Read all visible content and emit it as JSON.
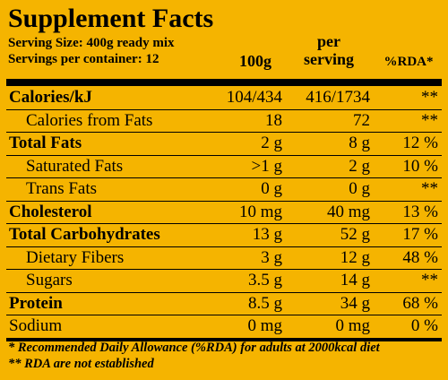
{
  "title": "Supplement Facts",
  "serving_size": "Serving Size: 400g ready mix",
  "servings_per_container": "Servings per container: 12",
  "columns": {
    "per100": "100g",
    "per_serving": "per\nserving",
    "per_serving_line1": "per",
    "per_serving_line2": "serving",
    "rda": "%RDA*"
  },
  "rows": [
    {
      "label": "Calories/kJ",
      "per100": "104/434",
      "per_serving": "416/1734",
      "rda": "**",
      "bold": true
    },
    {
      "label": "Calories from Fats",
      "per100": "18",
      "per_serving": "72",
      "rda": "**",
      "bold": false
    },
    {
      "label": "Total Fats",
      "per100": "2 g",
      "per_serving": "8 g",
      "rda": "12 %",
      "bold": true
    },
    {
      "label": "Saturated Fats",
      "per100": ">1 g",
      "per_serving": "2 g",
      "rda": "10 %",
      "bold": false
    },
    {
      "label": "Trans Fats",
      "per100": "0 g",
      "per_serving": "0 g",
      "rda": "**",
      "bold": false
    },
    {
      "label": "Cholesterol",
      "per100": "10 mg",
      "per_serving": "40 mg",
      "rda": "13 %",
      "bold": true
    },
    {
      "label": "Total Carbohydrates",
      "per100": "13 g",
      "per_serving": "52 g",
      "rda": "17 %",
      "bold": true
    },
    {
      "label": "Dietary Fibers",
      "per100": "3 g",
      "per_serving": "12 g",
      "rda": "48 %",
      "bold": false
    },
    {
      "label": "Sugars",
      "per100": "3.5 g",
      "per_serving": "14 g",
      "rda": "**",
      "bold": false
    },
    {
      "label": "Protein",
      "per100": "8.5 g",
      "per_serving": "34 g",
      "rda": "68 %",
      "bold": true
    },
    {
      "label": "Sodium",
      "per100": "0 mg",
      "per_serving": "0 mg",
      "rda": "0 %",
      "bold": false
    }
  ],
  "footnotes": [
    "* Recommended Daily Allowance (%RDA) for adults at 2000kcal diet",
    "** RDA are not established"
  ],
  "colors": {
    "background": "#f5b400",
    "text": "#000000"
  }
}
